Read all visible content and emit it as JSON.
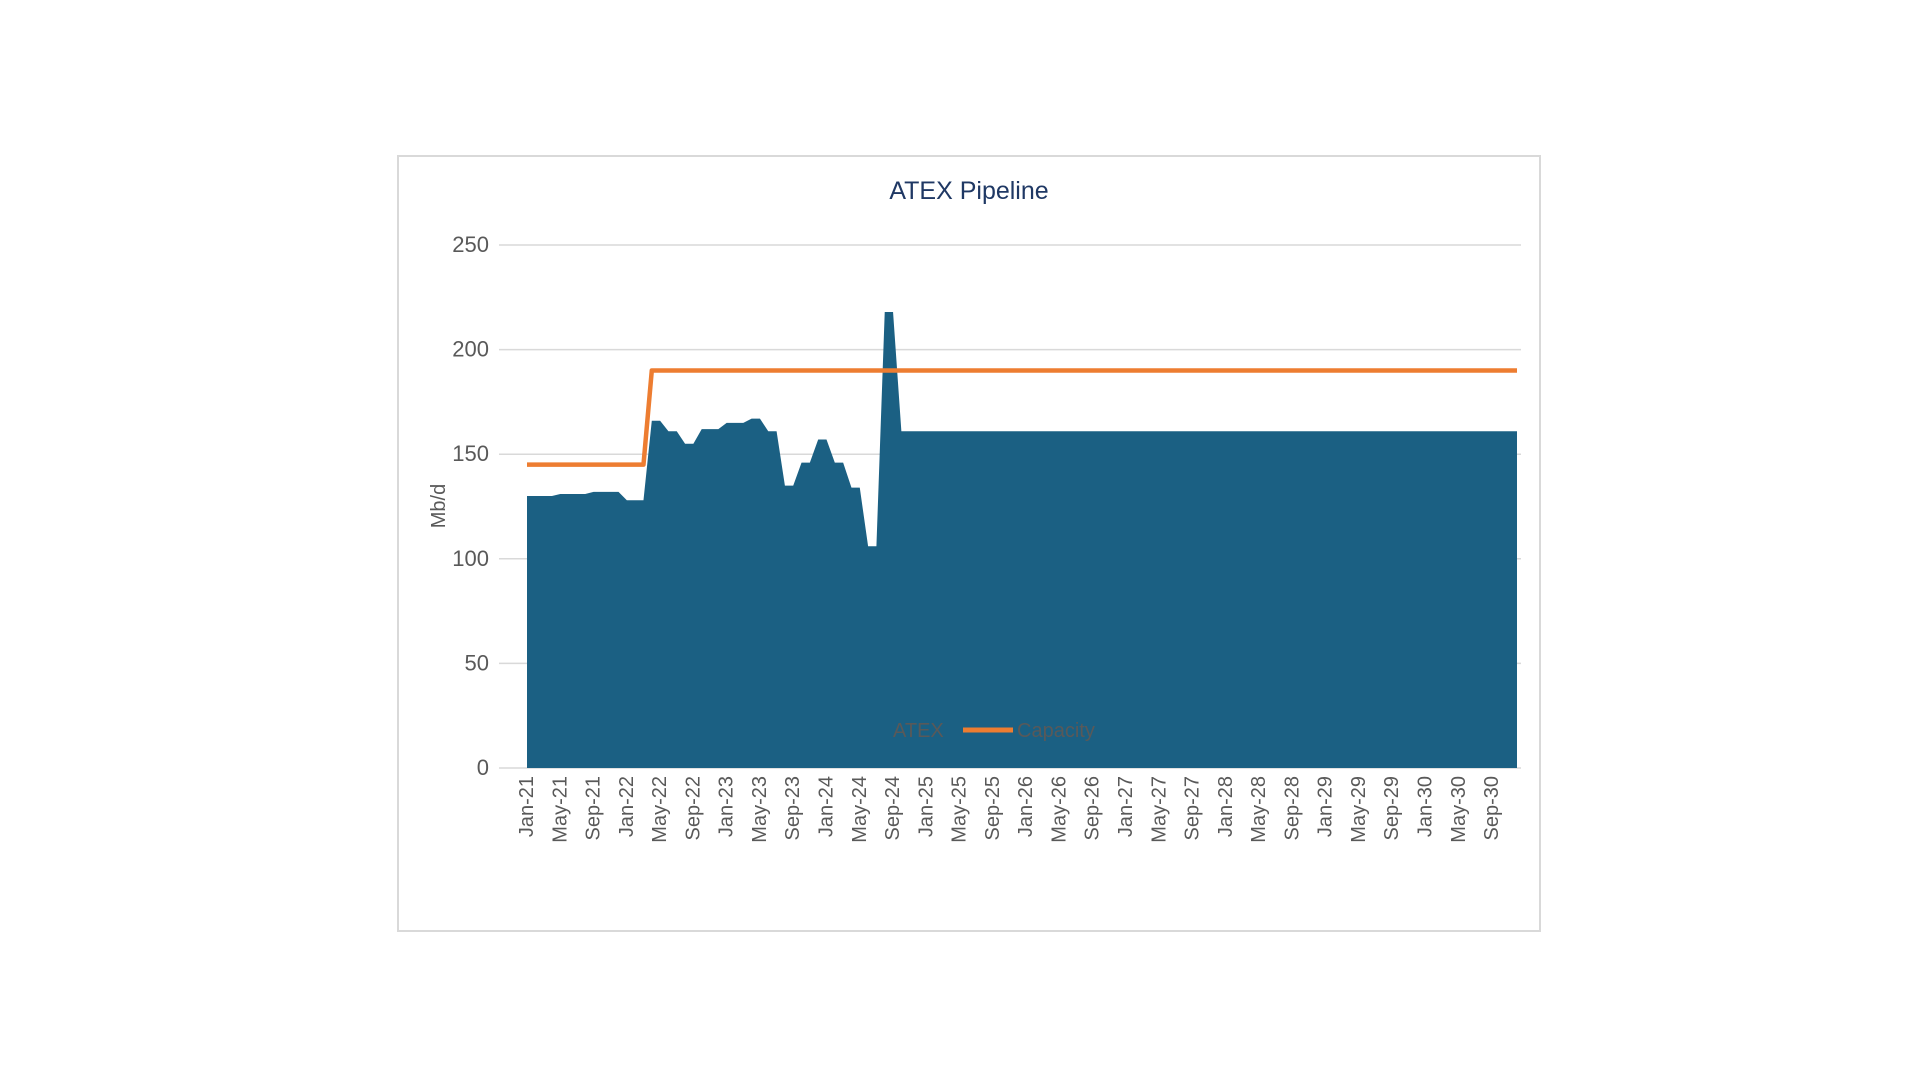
{
  "chart_data": {
    "type": "area",
    "title": "ATEX Pipeline",
    "ylabel": "Mb/d",
    "xlabel": "",
    "ylim": [
      0,
      250
    ],
    "yticks": [
      "0",
      "50",
      "100",
      "150",
      "200",
      "250"
    ],
    "xtick_labels": [
      "Jan-21",
      "May-21",
      "Sep-21",
      "Jan-22",
      "May-22",
      "Sep-22",
      "Jan-23",
      "May-23",
      "Sep-23",
      "Jan-24",
      "May-24",
      "Sep-24",
      "Jan-25",
      "May-25",
      "Sep-25",
      "Jan-26",
      "May-26",
      "Sep-26",
      "Jan-27",
      "May-27",
      "Sep-27",
      "Jan-28",
      "May-28",
      "Sep-28",
      "Jan-29",
      "May-29",
      "Sep-29",
      "Jan-30",
      "May-30",
      "Sep-30"
    ],
    "x_start": "Jan-21",
    "x_end": "Dec-30",
    "grid": true,
    "legend_position": "bottom",
    "series": [
      {
        "name": "ATEX",
        "type": "area",
        "color": "#1b6083",
        "points": [
          [
            "Jan-21",
            130
          ],
          [
            "Apr-21",
            130
          ],
          [
            "May-21",
            131
          ],
          [
            "Aug-21",
            131
          ],
          [
            "Sep-21",
            132
          ],
          [
            "Dec-21",
            132
          ],
          [
            "Jan-22",
            128
          ],
          [
            "Mar-22",
            128
          ],
          [
            "Apr-22",
            166
          ],
          [
            "May-22",
            166
          ],
          [
            "Jun-22",
            161
          ],
          [
            "Jul-22",
            161
          ],
          [
            "Aug-22",
            155
          ],
          [
            "Sep-22",
            155
          ],
          [
            "Oct-22",
            162
          ],
          [
            "Dec-22",
            162
          ],
          [
            "Jan-23",
            165
          ],
          [
            "Mar-23",
            165
          ],
          [
            "Apr-23",
            167
          ],
          [
            "May-23",
            167
          ],
          [
            "Jun-23",
            161
          ],
          [
            "Jul-23",
            161
          ],
          [
            "Aug-23",
            135
          ],
          [
            "Sep-23",
            135
          ],
          [
            "Oct-23",
            146
          ],
          [
            "Nov-23",
            146
          ],
          [
            "Dec-23",
            157
          ],
          [
            "Jan-24",
            157
          ],
          [
            "Feb-24",
            146
          ],
          [
            "Mar-24",
            146
          ],
          [
            "Apr-24",
            134
          ],
          [
            "May-24",
            134
          ],
          [
            "Jun-24",
            106
          ],
          [
            "Jul-24",
            106
          ],
          [
            "Aug-24",
            218
          ],
          [
            "Sep-24",
            218
          ],
          [
            "Oct-24",
            161
          ],
          [
            "Dec-30",
            161
          ]
        ]
      },
      {
        "name": "Capacity",
        "type": "line",
        "color": "#ed7d31",
        "points": [
          [
            "Jan-21",
            145
          ],
          [
            "Mar-22",
            145
          ],
          [
            "Apr-22",
            190
          ],
          [
            "Dec-30",
            190
          ]
        ]
      }
    ]
  }
}
